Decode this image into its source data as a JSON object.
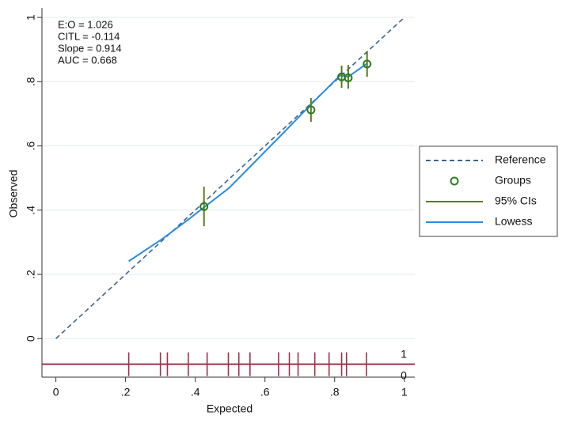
{
  "chart_data": {
    "type": "scatter",
    "x_label": "Expected",
    "y_label": "Observed",
    "annotations": [
      "E:O = 1.026",
      "CITL = -0.114",
      "Slope = 0.914",
      "AUC = 0.668"
    ],
    "xlim": [
      -0.04,
      1.03
    ],
    "ylim": [
      -0.12,
      1.01
    ],
    "xticks": [
      0,
      {
        "value": 0.2,
        "label": ".2"
      },
      {
        "value": 0.4,
        "label": ".4"
      },
      {
        "value": 0.6,
        "label": ".6"
      },
      {
        "value": 0.8,
        "label": ".8"
      },
      1
    ],
    "yticks": [
      0,
      {
        "value": 0.2,
        "label": ".2"
      },
      {
        "value": 0.4,
        "label": ".4"
      },
      {
        "value": 0.6,
        "label": ".6"
      },
      {
        "value": 0.8,
        "label": ".8"
      },
      1
    ],
    "grid": true,
    "legend": "right",
    "series": [
      {
        "name": "Reference",
        "kind": "line",
        "dashed": true,
        "color": "#3d668f",
        "x": [
          0,
          1
        ],
        "values": [
          0,
          1
        ]
      },
      {
        "name": "Groups",
        "kind": "points",
        "color": "#2e7d1e",
        "x": [
          0.425,
          0.732,
          0.82,
          0.839,
          0.893
        ],
        "values": [
          0.411,
          0.712,
          0.815,
          0.812,
          0.855
        ]
      },
      {
        "name": "95% CIs",
        "kind": "errorbar",
        "color": "#5a7a1e",
        "x": [
          0.425,
          0.732,
          0.82,
          0.839,
          0.893
        ],
        "lower": [
          0.35,
          0.675,
          0.781,
          0.778,
          0.815
        ],
        "upper": [
          0.473,
          0.749,
          0.85,
          0.852,
          0.894
        ]
      },
      {
        "name": "Lowess",
        "kind": "line",
        "dashed": false,
        "color": "#2a8de0",
        "x": [
          0.209,
          0.305,
          0.384,
          0.498,
          0.657,
          0.732,
          0.816,
          0.839,
          0.893
        ],
        "values": [
          0.241,
          0.31,
          0.374,
          0.47,
          0.645,
          0.729,
          0.82,
          0.815,
          0.857
        ]
      }
    ],
    "rug": {
      "color": "#a0304a",
      "labels": [
        "1",
        "0"
      ],
      "x": [
        0.209,
        0.3,
        0.32,
        0.38,
        0.434,
        0.495,
        0.525,
        0.557,
        0.639,
        0.67,
        0.695,
        0.743,
        0.784,
        0.82,
        0.834,
        0.891
      ]
    }
  }
}
